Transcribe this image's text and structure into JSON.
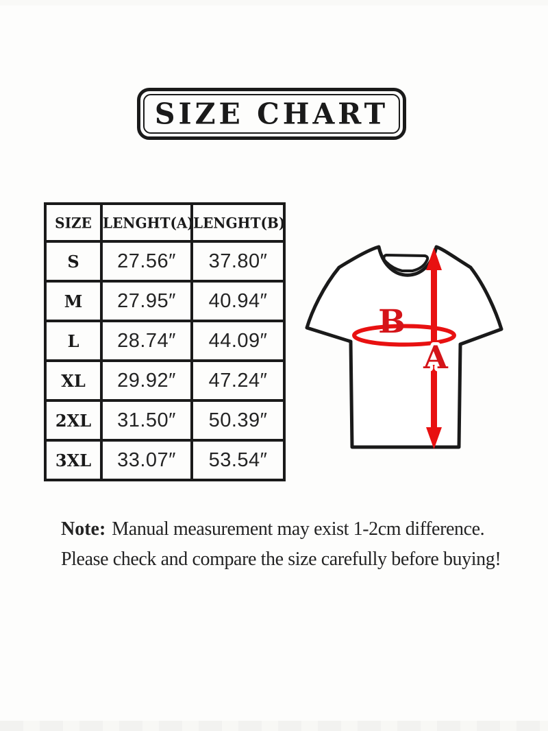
{
  "canvas": {
    "bg": "#fdfdfc"
  },
  "title": {
    "text": "SIZE CHART"
  },
  "size_table": {
    "headers": [
      "SIZE",
      "LENGHT(A)",
      "LENGHT(B)"
    ],
    "rows": [
      [
        "S",
        "27.56″",
        "37.80″"
      ],
      [
        "M",
        "27.95″",
        "40.94″"
      ],
      [
        "L",
        "28.74″",
        "44.09″"
      ],
      [
        "XL",
        "29.92″",
        "47.24″"
      ],
      [
        "2XL",
        "31.50″",
        "50.39″"
      ],
      [
        "3XL",
        "33.07″",
        "53.54″"
      ]
    ]
  },
  "diagram": {
    "length_a_label": "A",
    "length_b_label": "B",
    "arrow_color": "#e81111",
    "label_color": "#d41419",
    "outline_color": "#1a1a1a",
    "shirt_fill": "#ffffff"
  },
  "note": {
    "prefix": "Note:",
    "line1_rest": "Manual measurement may exist 1-2cm difference.",
    "line2": "Please check and compare the size carefully before buying!"
  }
}
